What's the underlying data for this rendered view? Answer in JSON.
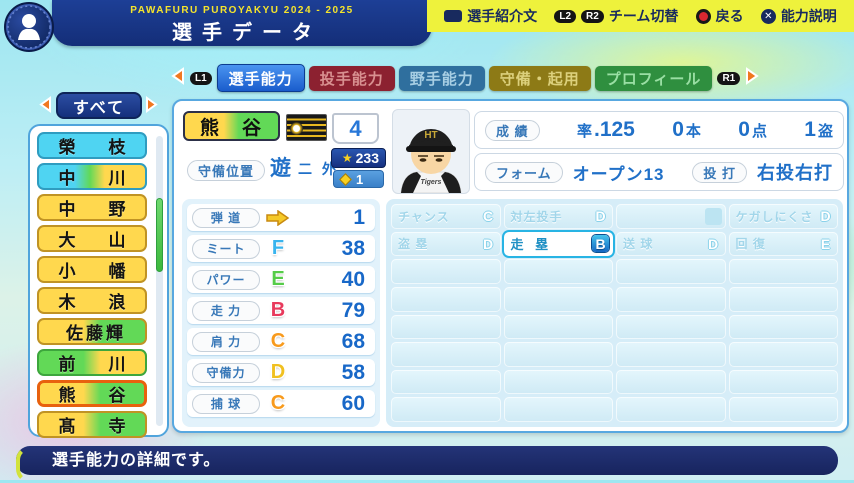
{
  "app": {
    "game_title": "PAWAFURU PUROYAKYU 2024 - 2025",
    "screen_title": "選手データ",
    "shortcuts": [
      {
        "icon": "touchpad-icon",
        "label": "選手紹介文"
      },
      {
        "icon": "l2r2-keys",
        "keys": [
          "L2",
          "R2"
        ],
        "label": "チーム切替"
      },
      {
        "icon": "circle-button-icon",
        "label": "戻る"
      },
      {
        "icon": "cross-button-icon",
        "label": "能力説明"
      }
    ]
  },
  "tab_bar": {
    "left_key": "L1",
    "right_key": "R1",
    "tabs": [
      {
        "label": "選手能力",
        "active": true,
        "bg": "#1a5ccc",
        "fg": "#ffffff"
      },
      {
        "label": "投手能力",
        "active": false,
        "bg": "#8c2130",
        "fg": "#d89090"
      },
      {
        "label": "野手能力",
        "active": false,
        "bg": "#2f6f9e",
        "fg": "#a8cfe4"
      },
      {
        "label": "守備・起用",
        "active": false,
        "bg": "#8d7a16",
        "fg": "#dcd07c"
      },
      {
        "label": "プロフィール",
        "active": false,
        "bg": "#2f8f3f",
        "fg": "#9adfa4"
      }
    ]
  },
  "sidebar": {
    "filter_label": "すべて",
    "players": [
      {
        "name": "榮　枝",
        "position_colors": [
          "#4fd4f2"
        ],
        "selected": false
      },
      {
        "name": "中　川",
        "position_colors": [
          "#4fd4f2",
          "#62d957",
          "#ffd84e"
        ],
        "selected": false
      },
      {
        "name": "中　野",
        "position_colors": [
          "#ffd84e"
        ],
        "selected": false
      },
      {
        "name": "大　山",
        "position_colors": [
          "#ffd84e"
        ],
        "selected": false
      },
      {
        "name": "小　幡",
        "position_colors": [
          "#ffd84e"
        ],
        "selected": false
      },
      {
        "name": "木　浪",
        "position_colors": [
          "#ffd84e"
        ],
        "selected": false
      },
      {
        "name": "佐藤輝",
        "position_colors": [
          "#ffd84e",
          "#62d957"
        ],
        "selected": false
      },
      {
        "name": "前　川",
        "position_colors": [
          "#62d957",
          "#ffd84e"
        ],
        "selected": false
      },
      {
        "name": "熊　谷",
        "position_colors": [
          "#ffd84e",
          "#62d957"
        ],
        "selected": true
      },
      {
        "name": "髙　寺",
        "position_colors": [
          "#ffd84e",
          "#62d957"
        ],
        "selected": false
      }
    ]
  },
  "player_card": {
    "name": "熊　谷",
    "name_colors": [
      "#ffd84e",
      "#62d957"
    ],
    "team_flag": "hanshin-tigers",
    "jersey_number": "4",
    "position_label": "守備位置",
    "position_primary": "遊",
    "position_secondary": "二 外",
    "star_total": "233",
    "gem_total": "1",
    "record": {
      "label": "成 績",
      "avg_label": "率",
      "avg": ".125",
      "hr": "0",
      "hr_unit": "本",
      "rbi": "0",
      "rbi_unit": "点",
      "sb": "1",
      "sb_unit": "盗"
    },
    "form": {
      "label": "フォーム",
      "value": "オープン13",
      "throw_bat_label": "投 打",
      "throw_bat_value": "右投右打"
    }
  },
  "batting_stats": [
    {
      "label": "弾 道",
      "grade": "",
      "icon": "trajectory-arrow-icon",
      "value": "1",
      "color": "#f5c928"
    },
    {
      "label": "ミート",
      "grade": "F",
      "value": "38",
      "color": "#38b4ee"
    },
    {
      "label": "パワー",
      "grade": "E",
      "value": "40",
      "color": "#56cc48"
    },
    {
      "label": "走 力",
      "grade": "B",
      "value": "79",
      "color": "#e83a5c"
    },
    {
      "label": "肩 力",
      "grade": "C",
      "value": "68",
      "color": "#f89a1c"
    },
    {
      "label": "守備力",
      "grade": "D",
      "value": "58",
      "color": "#f0c020"
    },
    {
      "label": "捕 球",
      "grade": "C",
      "value": "60",
      "color": "#f89a1c"
    }
  ],
  "abilities": {
    "rows": [
      [
        {
          "label": "チャンス",
          "grade": "C"
        },
        {
          "label": "対左投手",
          "grade": "D"
        },
        {
          "label": "",
          "grade": "",
          "empty_slot": true
        },
        {
          "label": "ケガしにくさ",
          "grade": "D"
        }
      ],
      [
        {
          "label": "盗 塁",
          "grade": "D"
        },
        {
          "label": "走 塁",
          "grade": "B",
          "highlighted": true
        },
        {
          "label": "送 球",
          "grade": "D"
        },
        {
          "label": "回 復",
          "grade": "E"
        }
      ]
    ],
    "empty_row_count": 6
  },
  "footer": {
    "message": "選手能力の詳細です。"
  }
}
